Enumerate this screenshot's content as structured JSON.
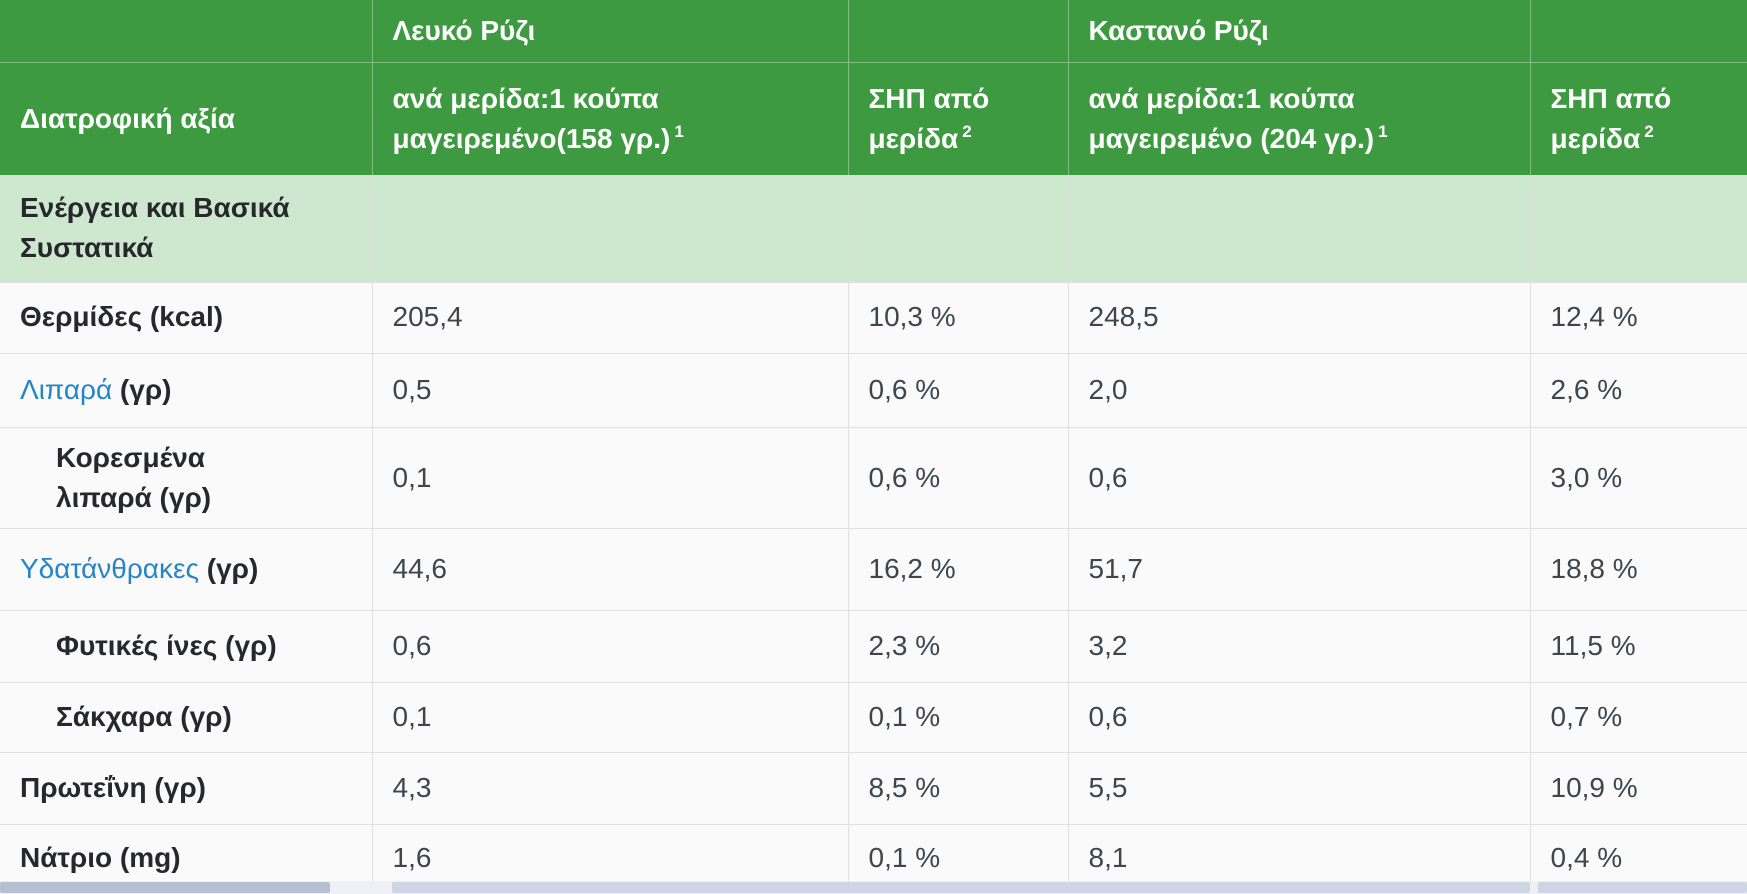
{
  "colors": {
    "header_green": "#3e9a41",
    "section_green": "#cde8cf",
    "link_blue": "#2585c7",
    "header_text": "#ffffff",
    "label_text": "#26282b",
    "value_text": "#3e464d",
    "row_background": "#fafafa",
    "divider": "#e0e0e0",
    "scrollbar_track": "#eef0f5",
    "scrollbar_thumb_dark": "#b5c0d3",
    "scrollbar_thumb_light": "#ced6e3"
  },
  "table": {
    "products": [
      "Λευκό Ρύζι",
      "Καστανό Ρύζι"
    ],
    "header": {
      "nutrition_label": "Διατροφική αξία",
      "white_serving": "ανά μερίδα:1 κούπα μαγειρεμένο(158 γρ.)",
      "white_serving_footnote": "1",
      "white_rdi": "ΣΗΠ από μερίδα",
      "white_rdi_footnote": "2",
      "brown_serving": "ανά μερίδα:1 κούπα μαγειρεμένο (204 γρ.)",
      "brown_serving_footnote": "1",
      "brown_rdi": "ΣΗΠ από μερίδα",
      "brown_rdi_footnote": "2"
    },
    "section_header": "Ενέργεια και Βασικά Συστατικά",
    "rows": [
      {
        "label": "Θερμίδες",
        "unit": "(kcal)",
        "link": false,
        "indent": false,
        "values": [
          "205,4",
          "10,3 %",
          "248,5",
          "12,4 %"
        ]
      },
      {
        "label": "Λιπαρά",
        "unit": "(γρ)",
        "link": true,
        "indent": false,
        "values": [
          "0,5",
          "0,6 %",
          "2,0",
          "2,6 %"
        ]
      },
      {
        "label": "Κορεσμένα λιπαρά",
        "unit": "(γρ)",
        "link": false,
        "indent": true,
        "values": [
          "0,1",
          "0,6 %",
          "0,6",
          "3,0 %"
        ]
      },
      {
        "label": "Υδατάνθρακες",
        "unit": "(γρ)",
        "link": true,
        "indent": false,
        "values": [
          "44,6",
          "16,2 %",
          "51,7",
          "18,8 %"
        ]
      },
      {
        "label": "Φυτικές ίνες",
        "unit": "(γρ)",
        "link": false,
        "indent": true,
        "values": [
          "0,6",
          "2,3 %",
          "3,2",
          "11,5 %"
        ]
      },
      {
        "label": "Σάκχαρα",
        "unit": "(γρ)",
        "link": false,
        "indent": true,
        "values": [
          "0,1",
          "0,1 %",
          "0,6",
          "0,7 %"
        ]
      },
      {
        "label": "Πρωτεΐνη",
        "unit": "(γρ)",
        "link": false,
        "indent": false,
        "values": [
          "4,3",
          "8,5 %",
          "5,5",
          "10,9 %"
        ]
      },
      {
        "label": "Νάτριο",
        "unit": "(mg)",
        "link": false,
        "indent": false,
        "values": [
          "1,6",
          "0,1 %",
          "8,1",
          "0,4 %"
        ]
      }
    ]
  }
}
